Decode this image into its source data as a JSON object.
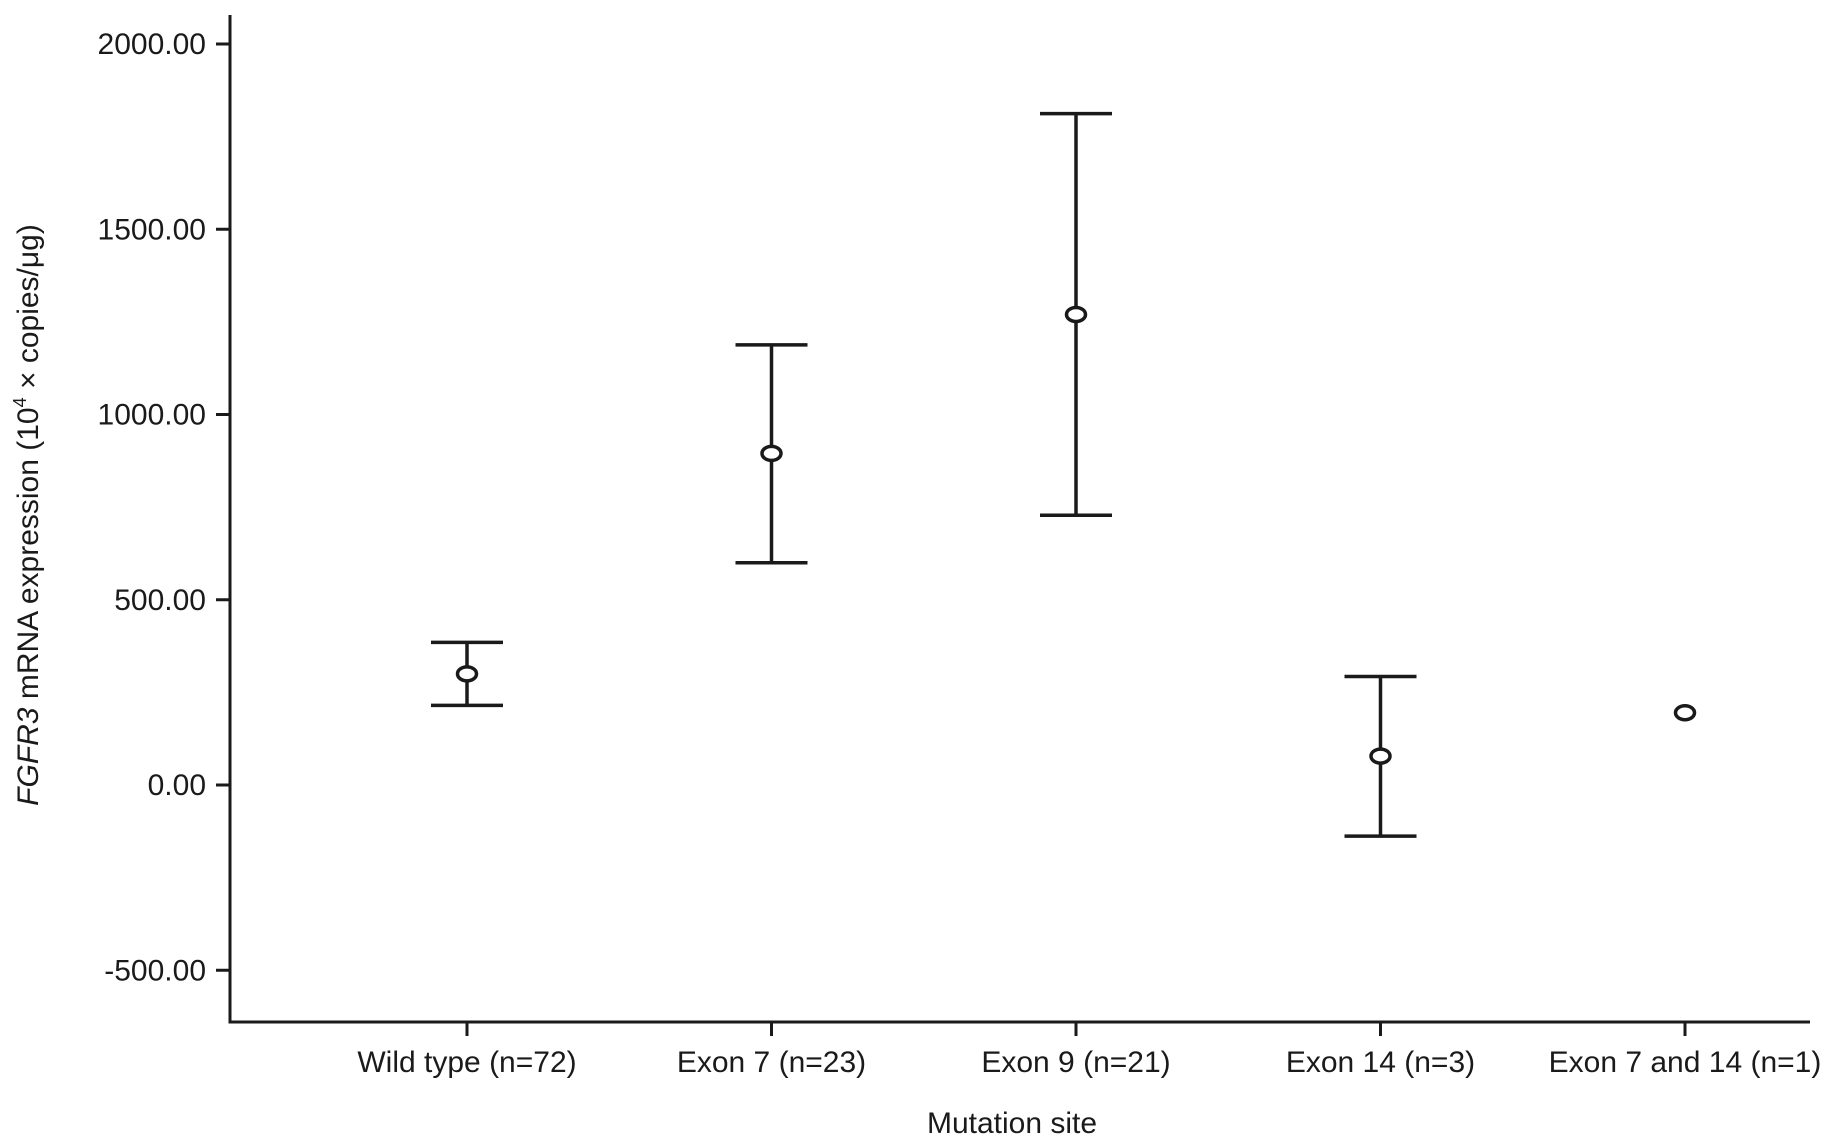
{
  "chart_data": {
    "type": "scatter",
    "title": "",
    "xlabel": "Mutation site",
    "ylabel_italic": "FGFR3",
    "ylabel_rest": " mRNA expression (10",
    "ylabel_sup": "4",
    "ylabel_end": " × copies/μg)",
    "ylim": [
      -600,
      2070
    ],
    "yticks": [
      -500,
      0,
      500,
      1000,
      1500,
      2000
    ],
    "ytick_labels": [
      "-500.00",
      "0.00",
      "500.00",
      "1000.00",
      "1500.00",
      "2000.00"
    ],
    "grid": false,
    "categories": [
      "Wild type (n=72)",
      "Exon 7 (n=23)",
      "Exon 9 (n=21)",
      "Exon 14 (n=3)",
      "Exon 7 and 14 (n=1)"
    ],
    "points": [
      {
        "category": "Wild type (n=72)",
        "mean": 300,
        "lower": 215,
        "upper": 385
      },
      {
        "category": "Exon 7 (n=23)",
        "mean": 895,
        "lower": 600,
        "upper": 1188
      },
      {
        "category": "Exon 9 (n=21)",
        "mean": 1270,
        "lower": 728,
        "upper": 1812
      },
      {
        "category": "Exon 14 (n=3)",
        "mean": 78,
        "lower": -138,
        "upper": 293
      },
      {
        "category": "Exon 7 and 14 (n=1)",
        "mean": 195,
        "lower": null,
        "upper": null
      }
    ]
  }
}
